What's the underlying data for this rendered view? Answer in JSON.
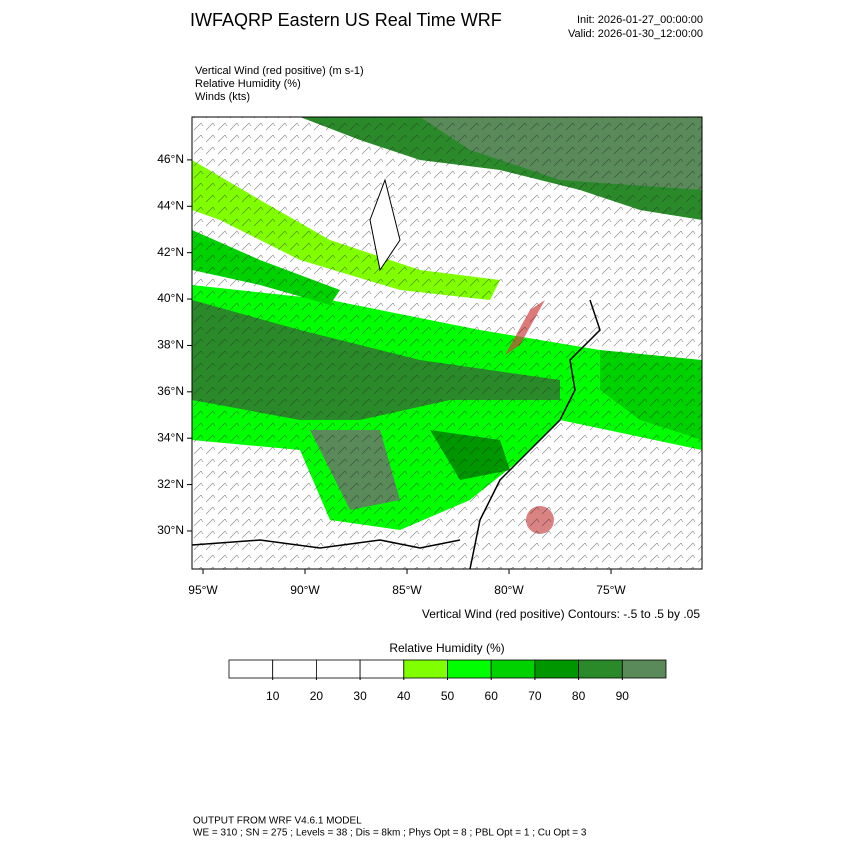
{
  "header": {
    "title": "IWFAQRP Eastern US Real Time WRF",
    "init": "Init: 2026-01-27_00:00:00",
    "valid": "Valid: 2026-01-30_12:00:00"
  },
  "fields": [
    "Vertical Wind (red positive)   (m s-1)",
    "Relative Humidity   (%)",
    "Winds   (kts)"
  ],
  "map": {
    "xlim": [
      -95.54,
      -70.54
    ],
    "ylim": [
      28.36,
      47.85
    ],
    "xticks": [
      {
        "value": -95,
        "label": "95°W"
      },
      {
        "value": -90,
        "label": "90°W"
      },
      {
        "value": -85,
        "label": "85°W"
      },
      {
        "value": -80,
        "label": "80°W"
      },
      {
        "value": -75,
        "label": "75°W"
      }
    ],
    "yticks": [
      {
        "value": 30,
        "label": "30°N"
      },
      {
        "value": 32,
        "label": "32°N"
      },
      {
        "value": 34,
        "label": "34°N"
      },
      {
        "value": 36,
        "label": "36°N"
      },
      {
        "value": 38,
        "label": "38°N"
      },
      {
        "value": 40,
        "label": "40°N"
      },
      {
        "value": 42,
        "label": "42°N"
      },
      {
        "value": 44,
        "label": "44°N"
      },
      {
        "value": 46,
        "label": "46°N"
      }
    ]
  },
  "contour_note": "Vertical Wind (red positive) Contours: -.5 to .5 by .05",
  "colorbar": {
    "title": "Relative Humidity  (%)",
    "range": [
      0,
      100
    ],
    "colors": [
      "#ffffff",
      "#ffffff",
      "#ffffff",
      "#ffffff",
      "#7fff00",
      "#00ff00",
      "#00d200",
      "#009600",
      "#2a8a2a",
      "#5a8a5a"
    ],
    "ticks": [
      10,
      20,
      30,
      40,
      50,
      60,
      70,
      80,
      90
    ]
  },
  "footer": {
    "line1": "OUTPUT FROM WRF V4.6.1 MODEL",
    "line2": "WE = 310 ; SN = 275 ; Levels = 38 ; Dis = 8km ; Phys Opt = 8 ; PBL Opt = 1 ; Cu Opt = 3"
  }
}
